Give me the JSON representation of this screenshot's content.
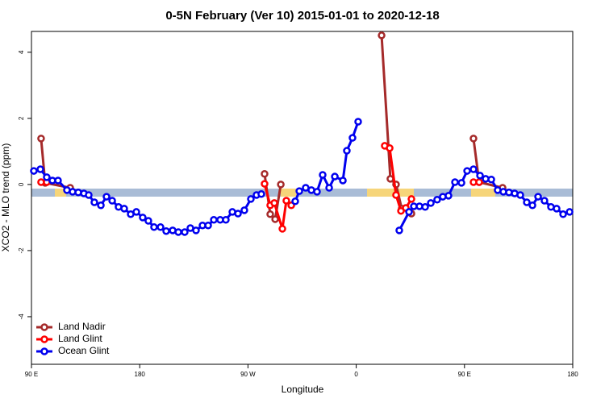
{
  "chart_data": {
    "type": "line",
    "title": "0-5N February (Ver 10)   2015-01-01 to 2020-12-18",
    "x_label": "Longitude",
    "y_label": "XCO2 - MLO trend (ppm)",
    "xlim": [
      90,
      540
    ],
    "ylim": [
      -5.44,
      4.63
    ],
    "xticks": [
      {
        "value": 90,
        "label": "90 E"
      },
      180,
      {
        "value": 270,
        "label": "90 W"
      },
      {
        "value": 360,
        "label": "0"
      },
      {
        "value": 450,
        "label": "90 E"
      },
      {
        "value": 540,
        "label": "180"
      }
    ],
    "yticks": [
      -4,
      -2,
      0,
      2,
      4
    ],
    "legend": "bottomleft",
    "series": [
      {
        "name": "Land Nadir",
        "color": "#a52a2a",
        "x": [
          98,
          101.4,
          122.2,
          200,
          283.8,
          288.5,
          292.6,
          297.3,
          340,
          381.1,
          388.4,
          393.1,
          397.8,
          405.9,
          430,
          457.5,
          462.2,
          481.7
        ],
        "values": [
          1.39,
          0.05,
          -0.1,
          null,
          0.32,
          -0.9,
          -1.05,
          0.0,
          null,
          4.51,
          0.17,
          0.0,
          -0.73,
          -0.88,
          null,
          1.39,
          0.07,
          -0.1
        ]
      },
      {
        "name": "Land Glint",
        "color": "#ff0000",
        "x": [
          98,
          102.7,
          200,
          283.8,
          288.5,
          291.9,
          298.6,
          301.9,
          306,
          340,
          383.7,
          387.8,
          393.1,
          397.2,
          401.2,
          405.9,
          430,
          457.5,
          462.2
        ],
        "values": [
          0.07,
          0.07,
          null,
          0.02,
          -0.63,
          -0.56,
          -1.34,
          -0.49,
          -0.63,
          null,
          1.17,
          1.1,
          -0.32,
          -0.8,
          -0.71,
          -0.44,
          null,
          0.07,
          0.07
        ]
      },
      {
        "name": "Ocean Glint",
        "color": "#0000ee",
        "x": [
          92,
          97.4,
          102.7,
          107.4,
          112.1,
          119.5,
          124.2,
          128.9,
          133.6,
          137.6,
          142.3,
          147.7,
          152.4,
          157.1,
          162.4,
          167.1,
          172.5,
          177.2,
          182.5,
          187.2,
          191.9,
          197.3,
          202,
          207.4,
          212.1,
          217.4,
          222.1,
          226.8,
          232.2,
          236.9,
          241.6,
          246.9,
          251.6,
          257,
          261.7,
          267,
          272.4,
          277.1,
          281.1,
          295,
          309.3,
          312.7,
          318,
          322.7,
          327.4,
          332.1,
          337.5,
          342.2,
          348.9,
          352.2,
          356.9,
          361.6,
          380,
          395.8,
          403.9,
          407.9,
          412.6,
          417.3,
          422,
          427.3,
          432,
          436.7,
          442.1,
          447.5,
          452.2,
          457.5,
          462.9,
          467.6,
          472.3,
          477.6,
          482.3,
          487,
          491.7,
          496.4,
          501.8,
          506.5,
          511.2,
          516.5,
          521.9,
          526.6,
          532,
          537.4
        ],
        "values": [
          0.41,
          0.46,
          0.22,
          0.12,
          0.12,
          -0.17,
          -0.22,
          -0.24,
          -0.27,
          -0.32,
          -0.54,
          -0.63,
          -0.37,
          -0.49,
          -0.68,
          -0.73,
          -0.9,
          -0.83,
          -1.0,
          -1.1,
          -1.29,
          -1.29,
          -1.41,
          -1.39,
          -1.44,
          -1.44,
          -1.32,
          -1.39,
          -1.24,
          -1.24,
          -1.07,
          -1.07,
          -1.07,
          -0.83,
          -0.88,
          -0.78,
          -0.44,
          -0.32,
          -0.29,
          null,
          -0.51,
          -0.2,
          -0.1,
          -0.17,
          -0.22,
          0.29,
          -0.1,
          0.24,
          0.12,
          1.02,
          1.41,
          1.9,
          null,
          -1.39,
          -0.83,
          -0.66,
          -0.66,
          -0.68,
          -0.56,
          -0.46,
          -0.37,
          -0.34,
          0.07,
          0.05,
          0.41,
          0.46,
          0.27,
          0.17,
          0.15,
          -0.17,
          -0.22,
          -0.24,
          -0.27,
          -0.32,
          -0.54,
          -0.63,
          -0.37,
          -0.49,
          -0.68,
          -0.73,
          -0.9,
          -0.83
        ]
      }
    ]
  }
}
